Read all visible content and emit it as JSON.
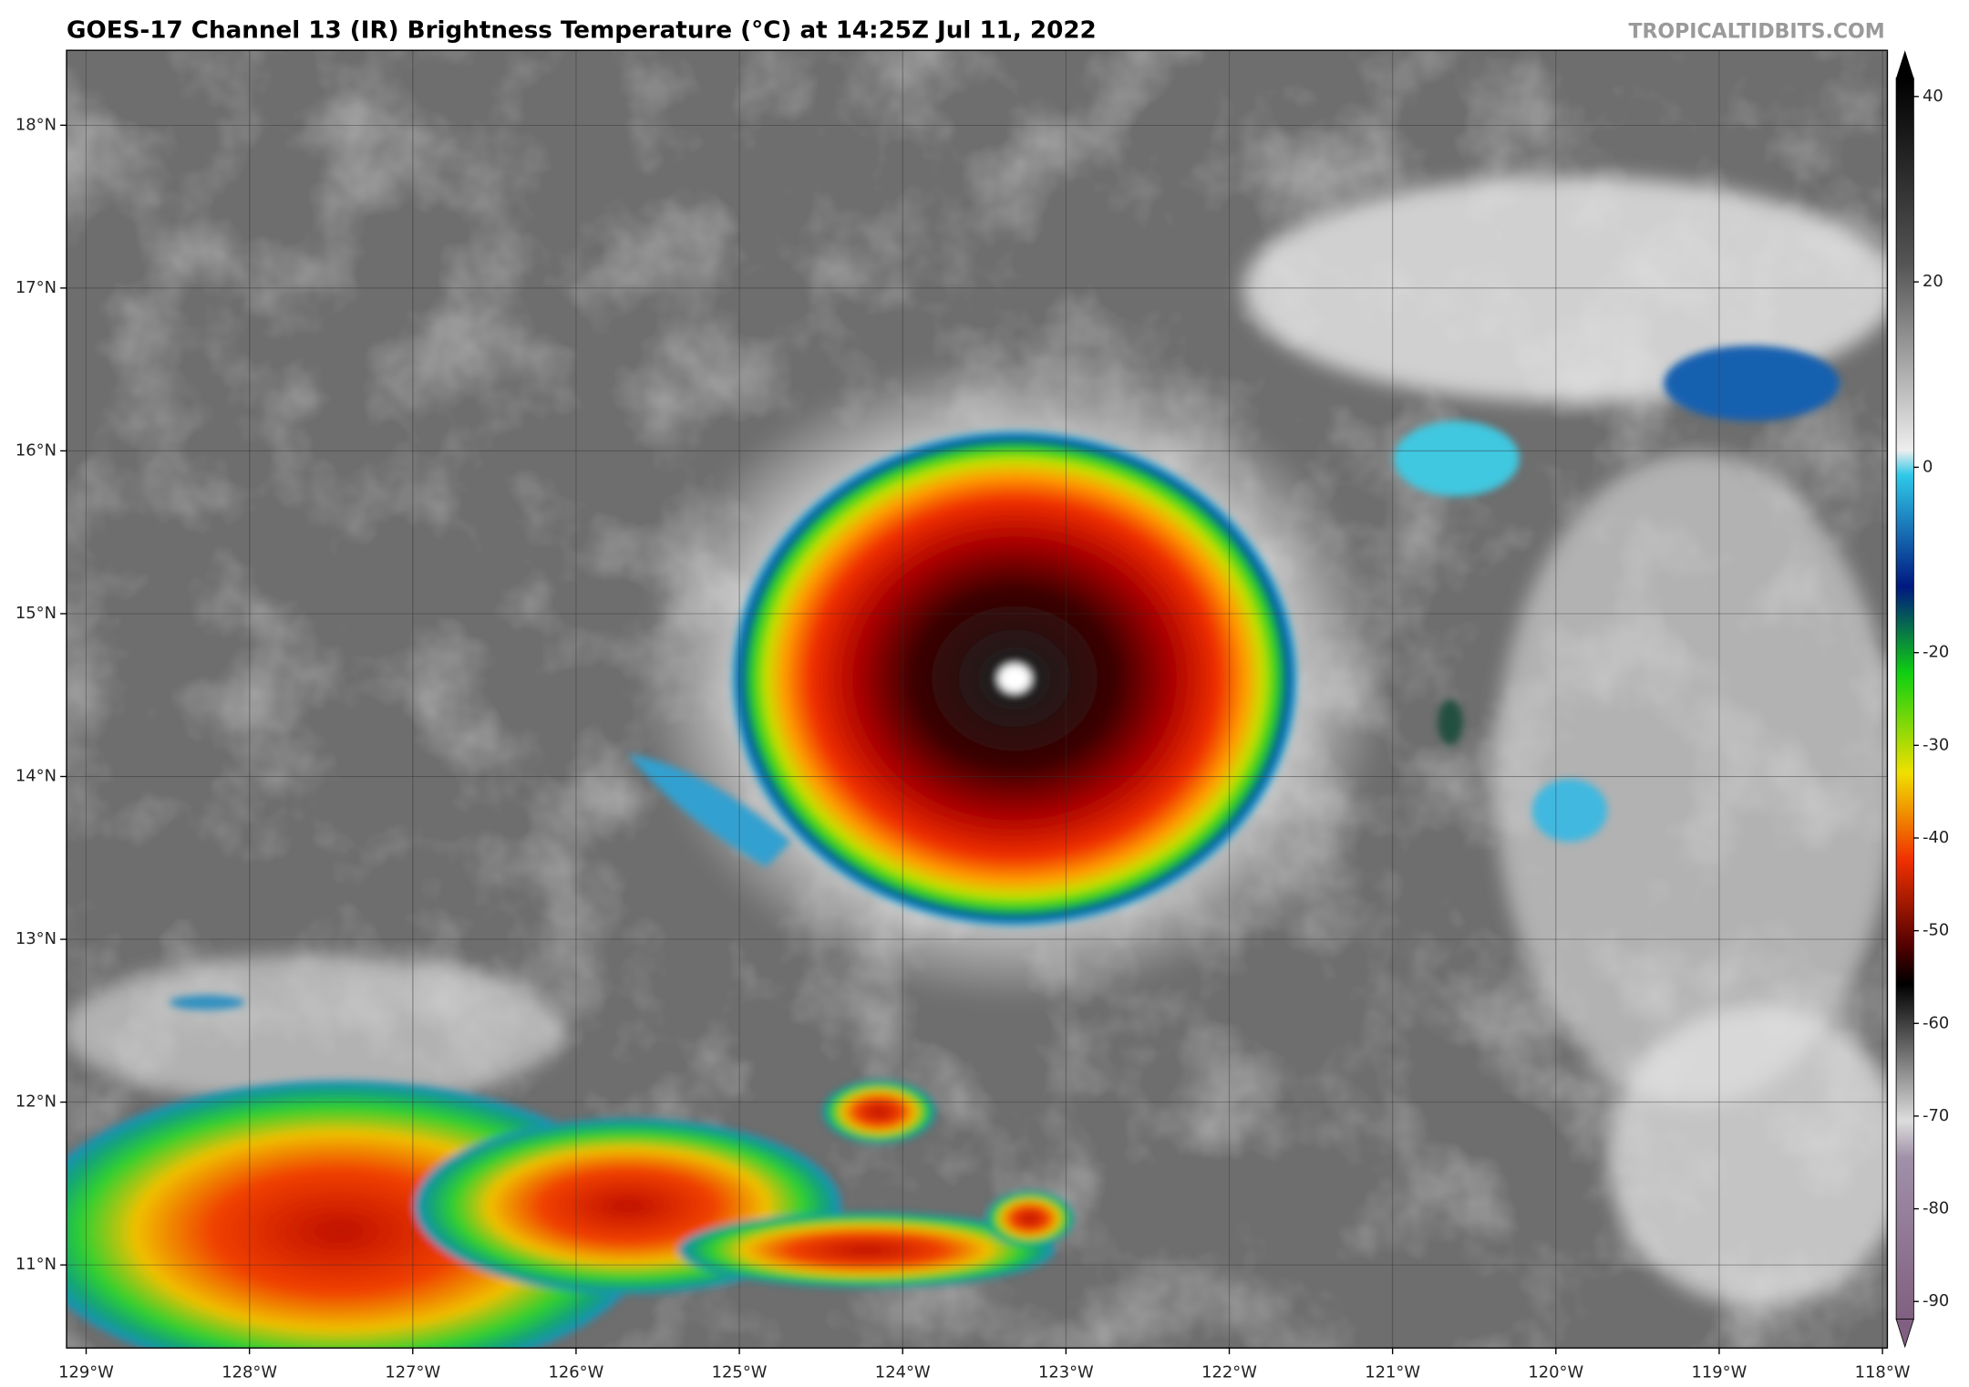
{
  "map": {
    "title": "GOES-17 Channel 13 (IR) Brightness Temperature (°C) at 14:25Z Jul 11, 2022",
    "watermark": "TROPICALTIDBITS.COM",
    "xlim": [
      -129.12,
      -117.97
    ],
    "ylim": [
      10.49,
      18.46
    ],
    "xticks": [
      {
        "value": -129,
        "label": "129°W"
      },
      {
        "value": -128,
        "label": "128°W"
      },
      {
        "value": -127,
        "label": "127°W"
      },
      {
        "value": -126,
        "label": "126°W"
      },
      {
        "value": -125,
        "label": "125°W"
      },
      {
        "value": -124,
        "label": "124°W"
      },
      {
        "value": -123,
        "label": "123°W"
      },
      {
        "value": -122,
        "label": "122°W"
      },
      {
        "value": -121,
        "label": "121°W"
      },
      {
        "value": -120,
        "label": "120°W"
      },
      {
        "value": -119,
        "label": "119°W"
      },
      {
        "value": -118,
        "label": "118°W"
      }
    ],
    "yticks": [
      {
        "value": 18,
        "label": "18°N"
      },
      {
        "value": 17,
        "label": "17°N"
      },
      {
        "value": 16,
        "label": "16°N"
      },
      {
        "value": 15,
        "label": "15°N"
      },
      {
        "value": 14,
        "label": "14°N"
      },
      {
        "value": 13,
        "label": "13°N"
      },
      {
        "value": 12,
        "label": "12°N"
      },
      {
        "value": 11,
        "label": "11°N"
      }
    ],
    "grid": true,
    "colorbar": {
      "lim": [
        -91.9,
        42
      ],
      "ticks": [
        40,
        20,
        0,
        -20,
        -30,
        -40,
        -50,
        -60,
        -70,
        -80,
        -90
      ]
    }
  }
}
